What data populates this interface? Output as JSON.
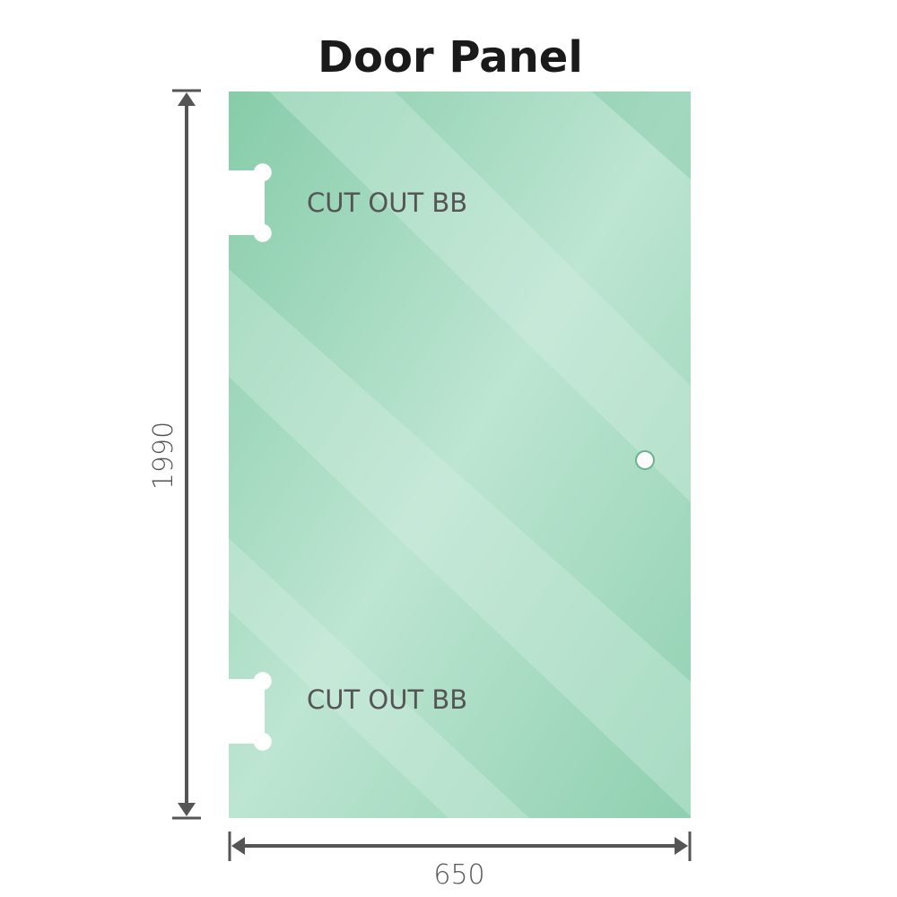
{
  "title": "Door Panel",
  "cutout_top_label": "CUT OUT BB",
  "cutout_bottom_label": "CUT OUT BB",
  "dimensions": {
    "height": "1990",
    "width": "650"
  },
  "colors": {
    "glass": "#86ccaa",
    "glass_light": "#bde5d2",
    "dimension_line": "#555555"
  }
}
